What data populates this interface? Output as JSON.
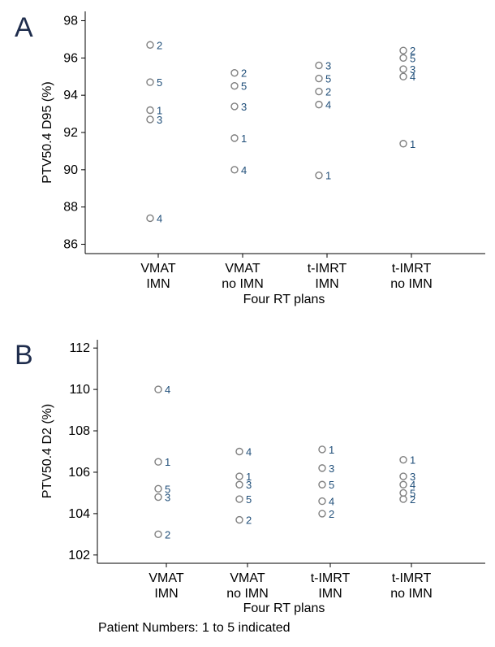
{
  "footnote": "Patient Numbers: 1 to 5 indicated",
  "chart_data": [
    {
      "panel": "A",
      "type": "scatter",
      "xlabel": "Four RT plans",
      "ylabel": "PTV50.4 D95 (%)",
      "categories": [
        [
          "VMAT",
          "IMN"
        ],
        [
          "VMAT",
          "no IMN"
        ],
        [
          "t-IMRT",
          "IMN"
        ],
        [
          "t-IMRT",
          "no IMN"
        ]
      ],
      "ylim": [
        85.5,
        98.5
      ],
      "yticks": [
        86,
        88,
        90,
        92,
        94,
        96,
        98
      ],
      "grid": false,
      "colors": {
        "marker": "#7f7f7f",
        "label": "#1f4e79"
      },
      "points": [
        {
          "cat": 0,
          "y": 96.7,
          "label": "2"
        },
        {
          "cat": 0,
          "y": 94.7,
          "label": "5"
        },
        {
          "cat": 0,
          "y": 93.2,
          "label": "1"
        },
        {
          "cat": 0,
          "y": 92.7,
          "label": "3"
        },
        {
          "cat": 0,
          "y": 87.4,
          "label": "4"
        },
        {
          "cat": 1,
          "y": 95.2,
          "label": "2"
        },
        {
          "cat": 1,
          "y": 94.5,
          "label": "5"
        },
        {
          "cat": 1,
          "y": 93.4,
          "label": "3"
        },
        {
          "cat": 1,
          "y": 91.7,
          "label": "1"
        },
        {
          "cat": 1,
          "y": 90.0,
          "label": "4"
        },
        {
          "cat": 2,
          "y": 95.6,
          "label": "3"
        },
        {
          "cat": 2,
          "y": 94.9,
          "label": "5"
        },
        {
          "cat": 2,
          "y": 94.2,
          "label": "2"
        },
        {
          "cat": 2,
          "y": 93.5,
          "label": "4"
        },
        {
          "cat": 2,
          "y": 89.7,
          "label": "1"
        },
        {
          "cat": 3,
          "y": 96.4,
          "label": "2"
        },
        {
          "cat": 3,
          "y": 96.0,
          "label": "5"
        },
        {
          "cat": 3,
          "y": 95.4,
          "label": "3"
        },
        {
          "cat": 3,
          "y": 95.0,
          "label": "4"
        },
        {
          "cat": 3,
          "y": 91.4,
          "label": "1"
        }
      ]
    },
    {
      "panel": "B",
      "type": "scatter",
      "xlabel": "Four RT plans",
      "ylabel": "PTV50.4 D2 (%)",
      "categories": [
        [
          "VMAT",
          "IMN"
        ],
        [
          "VMAT",
          "no IMN"
        ],
        [
          "t-IMRT",
          "IMN"
        ],
        [
          "t-IMRT",
          "no IMN"
        ]
      ],
      "ylim": [
        101.6,
        112.4
      ],
      "yticks": [
        102,
        104,
        106,
        108,
        110,
        112
      ],
      "grid": false,
      "colors": {
        "marker": "#7f7f7f",
        "label": "#1f4e79"
      },
      "points": [
        {
          "cat": 0,
          "y": 110.0,
          "label": "4"
        },
        {
          "cat": 0,
          "y": 106.5,
          "label": "1"
        },
        {
          "cat": 0,
          "y": 105.2,
          "label": "5"
        },
        {
          "cat": 0,
          "y": 104.8,
          "label": "3"
        },
        {
          "cat": 0,
          "y": 103.0,
          "label": "2"
        },
        {
          "cat": 1,
          "y": 107.0,
          "label": "4"
        },
        {
          "cat": 1,
          "y": 105.8,
          "label": "1"
        },
        {
          "cat": 1,
          "y": 105.4,
          "label": "3"
        },
        {
          "cat": 1,
          "y": 104.7,
          "label": "5"
        },
        {
          "cat": 1,
          "y": 103.7,
          "label": "2"
        },
        {
          "cat": 2,
          "y": 107.1,
          "label": "1"
        },
        {
          "cat": 2,
          "y": 106.2,
          "label": "3"
        },
        {
          "cat": 2,
          "y": 105.4,
          "label": "5"
        },
        {
          "cat": 2,
          "y": 104.6,
          "label": "4"
        },
        {
          "cat": 2,
          "y": 104.0,
          "label": "2"
        },
        {
          "cat": 3,
          "y": 106.6,
          "label": "1"
        },
        {
          "cat": 3,
          "y": 105.8,
          "label": "3"
        },
        {
          "cat": 3,
          "y": 105.4,
          "label": "4"
        },
        {
          "cat": 3,
          "y": 105.0,
          "label": "5"
        },
        {
          "cat": 3,
          "y": 104.7,
          "label": "2"
        }
      ]
    }
  ]
}
